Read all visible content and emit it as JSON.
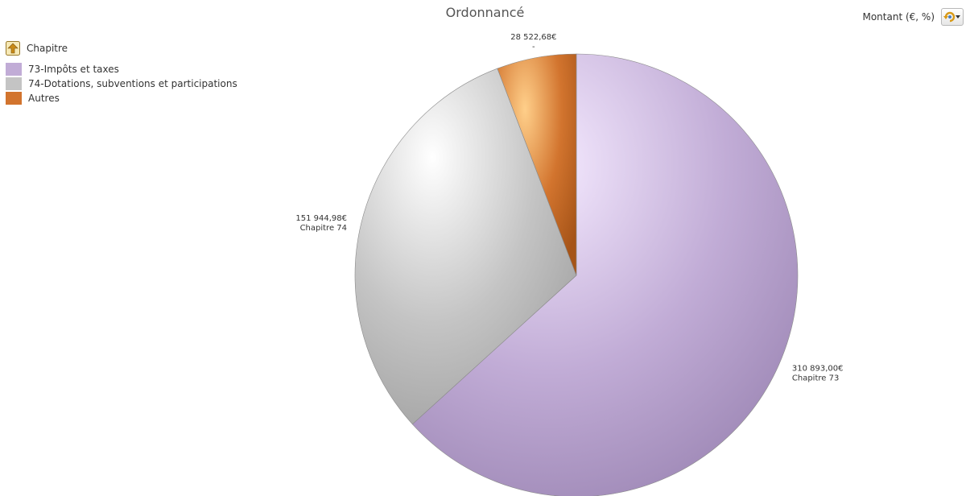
{
  "chart_data": {
    "type": "pie",
    "title": "Ordonnancé",
    "legend_title": "Chapitre",
    "legend_position": "top-left",
    "categories": [
      "73-Impôts et taxes",
      "74-Dotations, subventions et participations",
      "Autres"
    ],
    "values": [
      310893.0,
      151944.98,
      28522.68
    ],
    "value_labels": [
      "310 893,00€",
      "151 944,98€",
      "28 522,68€"
    ],
    "slice_labels": [
      "Chapitre 73",
      "Chapitre 74",
      "-"
    ],
    "colors": [
      "#c1acd6",
      "#c4c4c4",
      "#d2742e"
    ]
  },
  "toolbar": {
    "measure_label": "Montant (€, %)"
  }
}
